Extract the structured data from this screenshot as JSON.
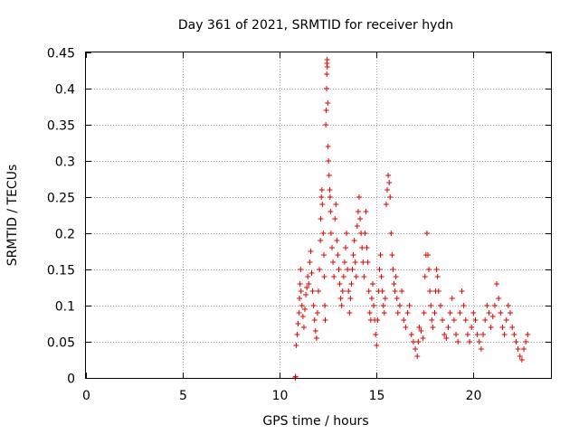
{
  "chart_data": {
    "type": "scatter",
    "title": "Day 361 of 2021, SRMTID for receiver hydn",
    "xlabel": "GPS time / hours",
    "ylabel": "SRMTID / TECUs",
    "xlim": [
      0,
      24
    ],
    "ylim": [
      0,
      0.45
    ],
    "xticks": [
      0,
      5,
      10,
      15,
      20
    ],
    "xtick_labels": [
      "0",
      "5",
      "10",
      "15",
      "20"
    ],
    "yticks": [
      0,
      0.05,
      0.1,
      0.15,
      0.2,
      0.25,
      0.3,
      0.35,
      0.4,
      0.45
    ],
    "ytick_labels": [
      "0",
      "0.05",
      "0.1",
      "0.15",
      "0.2",
      "0.25",
      "0.3",
      "0.35",
      "0.4",
      "0.45"
    ],
    "grid": true,
    "marker": "plus",
    "color": "#e00000",
    "series": [
      {
        "name": "SRMTID",
        "points": [
          [
            10.8,
            0.0
          ],
          [
            10.82,
            0.002
          ],
          [
            10.85,
            0.045
          ],
          [
            10.9,
            0.06
          ],
          [
            10.95,
            0.075
          ],
          [
            11.0,
            0.09
          ],
          [
            11.02,
            0.11
          ],
          [
            11.05,
            0.13
          ],
          [
            11.08,
            0.15
          ],
          [
            11.1,
            0.12
          ],
          [
            11.15,
            0.1
          ],
          [
            11.2,
            0.085
          ],
          [
            11.25,
            0.07
          ],
          [
            11.3,
            0.095
          ],
          [
            11.35,
            0.115
          ],
          [
            11.4,
            0.125
          ],
          [
            11.45,
            0.14
          ],
          [
            11.5,
            0.13
          ],
          [
            11.55,
            0.16
          ],
          [
            11.6,
            0.175
          ],
          [
            11.65,
            0.145
          ],
          [
            11.7,
            0.12
          ],
          [
            11.75,
            0.1
          ],
          [
            11.8,
            0.08
          ],
          [
            11.85,
            0.065
          ],
          [
            11.9,
            0.055
          ],
          [
            11.95,
            0.09
          ],
          [
            12.0,
            0.12
          ],
          [
            12.05,
            0.15
          ],
          [
            12.1,
            0.19
          ],
          [
            12.12,
            0.22
          ],
          [
            12.15,
            0.25
          ],
          [
            12.18,
            0.26
          ],
          [
            12.2,
            0.24
          ],
          [
            12.25,
            0.2
          ],
          [
            12.28,
            0.17
          ],
          [
            12.3,
            0.14
          ],
          [
            12.33,
            0.1
          ],
          [
            12.35,
            0.08
          ],
          [
            12.38,
            0.35
          ],
          [
            12.4,
            0.37
          ],
          [
            12.42,
            0.4
          ],
          [
            12.43,
            0.42
          ],
          [
            12.44,
            0.435
          ],
          [
            12.45,
            0.44
          ],
          [
            12.46,
            0.43
          ],
          [
            12.48,
            0.38
          ],
          [
            12.5,
            0.32
          ],
          [
            12.52,
            0.3
          ],
          [
            12.55,
            0.28
          ],
          [
            12.58,
            0.26
          ],
          [
            12.6,
            0.25
          ],
          [
            12.62,
            0.23
          ],
          [
            12.65,
            0.2
          ],
          [
            12.7,
            0.18
          ],
          [
            12.75,
            0.16
          ],
          [
            12.8,
            0.14
          ],
          [
            12.85,
            0.22
          ],
          [
            12.9,
            0.24
          ],
          [
            12.95,
            0.19
          ],
          [
            13.0,
            0.17
          ],
          [
            13.05,
            0.15
          ],
          [
            13.1,
            0.13
          ],
          [
            13.15,
            0.11
          ],
          [
            13.2,
            0.1
          ],
          [
            13.25,
            0.12
          ],
          [
            13.3,
            0.14
          ],
          [
            13.35,
            0.16
          ],
          [
            13.4,
            0.18
          ],
          [
            13.45,
            0.2
          ],
          [
            13.5,
            0.15
          ],
          [
            13.55,
            0.12
          ],
          [
            13.6,
            0.09
          ],
          [
            13.65,
            0.11
          ],
          [
            13.7,
            0.13
          ],
          [
            13.75,
            0.15
          ],
          [
            13.8,
            0.17
          ],
          [
            13.85,
            0.19
          ],
          [
            13.9,
            0.16
          ],
          [
            13.95,
            0.14
          ],
          [
            14.0,
            0.21
          ],
          [
            14.05,
            0.23
          ],
          [
            14.1,
            0.25
          ],
          [
            14.15,
            0.22
          ],
          [
            14.2,
            0.2
          ],
          [
            14.25,
            0.18
          ],
          [
            14.3,
            0.16
          ],
          [
            14.35,
            0.14
          ],
          [
            14.4,
            0.2
          ],
          [
            14.45,
            0.23
          ],
          [
            14.5,
            0.18
          ],
          [
            14.55,
            0.16
          ],
          [
            14.6,
            0.12
          ],
          [
            14.65,
            0.09
          ],
          [
            14.7,
            0.08
          ],
          [
            14.75,
            0.11
          ],
          [
            14.8,
            0.13
          ],
          [
            14.85,
            0.1
          ],
          [
            14.9,
            0.08
          ],
          [
            14.95,
            0.06
          ],
          [
            15.0,
            0.045
          ],
          [
            15.05,
            0.08
          ],
          [
            15.1,
            0.12
          ],
          [
            15.15,
            0.15
          ],
          [
            15.2,
            0.17
          ],
          [
            15.25,
            0.14
          ],
          [
            15.3,
            0.12
          ],
          [
            15.35,
            0.1
          ],
          [
            15.4,
            0.09
          ],
          [
            15.45,
            0.11
          ],
          [
            15.5,
            0.24
          ],
          [
            15.55,
            0.26
          ],
          [
            15.6,
            0.28
          ],
          [
            15.65,
            0.27
          ],
          [
            15.7,
            0.25
          ],
          [
            15.75,
            0.2
          ],
          [
            15.8,
            0.17
          ],
          [
            15.85,
            0.15
          ],
          [
            15.9,
            0.13
          ],
          [
            15.95,
            0.12
          ],
          [
            16.0,
            0.14
          ],
          [
            16.05,
            0.11
          ],
          [
            16.1,
            0.09
          ],
          [
            16.2,
            0.1
          ],
          [
            16.3,
            0.12
          ],
          [
            16.4,
            0.08
          ],
          [
            16.5,
            0.07
          ],
          [
            16.6,
            0.09
          ],
          [
            16.7,
            0.1
          ],
          [
            16.8,
            0.06
          ],
          [
            16.9,
            0.05
          ],
          [
            17.0,
            0.04
          ],
          [
            17.1,
            0.03
          ],
          [
            17.15,
            0.05
          ],
          [
            17.2,
            0.07
          ],
          [
            17.3,
            0.065
          ],
          [
            17.4,
            0.055
          ],
          [
            17.45,
            0.09
          ],
          [
            17.5,
            0.14
          ],
          [
            17.55,
            0.17
          ],
          [
            17.6,
            0.2
          ],
          [
            17.65,
            0.17
          ],
          [
            17.7,
            0.15
          ],
          [
            17.75,
            0.12
          ],
          [
            17.8,
            0.1
          ],
          [
            17.85,
            0.08
          ],
          [
            17.9,
            0.07
          ],
          [
            18.0,
            0.09
          ],
          [
            18.05,
            0.12
          ],
          [
            18.1,
            0.15
          ],
          [
            18.15,
            0.14
          ],
          [
            18.2,
            0.12
          ],
          [
            18.3,
            0.1
          ],
          [
            18.4,
            0.08
          ],
          [
            18.5,
            0.06
          ],
          [
            18.6,
            0.055
          ],
          [
            18.7,
            0.07
          ],
          [
            18.8,
            0.09
          ],
          [
            18.9,
            0.11
          ],
          [
            19.0,
            0.08
          ],
          [
            19.1,
            0.06
          ],
          [
            19.2,
            0.05
          ],
          [
            19.3,
            0.09
          ],
          [
            19.4,
            0.12
          ],
          [
            19.5,
            0.1
          ],
          [
            19.6,
            0.08
          ],
          [
            19.7,
            0.06
          ],
          [
            19.8,
            0.05
          ],
          [
            19.9,
            0.07
          ],
          [
            20.0,
            0.09
          ],
          [
            20.1,
            0.08
          ],
          [
            20.2,
            0.06
          ],
          [
            20.3,
            0.05
          ],
          [
            20.4,
            0.04
          ],
          [
            20.5,
            0.06
          ],
          [
            20.6,
            0.08
          ],
          [
            20.7,
            0.1
          ],
          [
            20.8,
            0.09
          ],
          [
            20.9,
            0.07
          ],
          [
            21.0,
            0.085
          ],
          [
            21.1,
            0.1
          ],
          [
            21.2,
            0.13
          ],
          [
            21.3,
            0.11
          ],
          [
            21.4,
            0.09
          ],
          [
            21.5,
            0.07
          ],
          [
            21.6,
            0.06
          ],
          [
            21.7,
            0.08
          ],
          [
            21.8,
            0.1
          ],
          [
            21.9,
            0.09
          ],
          [
            22.0,
            0.07
          ],
          [
            22.1,
            0.06
          ],
          [
            22.2,
            0.05
          ],
          [
            22.3,
            0.04
          ],
          [
            22.4,
            0.03
          ],
          [
            22.5,
            0.025
          ],
          [
            22.6,
            0.04
          ],
          [
            22.7,
            0.05
          ],
          [
            22.8,
            0.06
          ]
        ]
      }
    ]
  }
}
